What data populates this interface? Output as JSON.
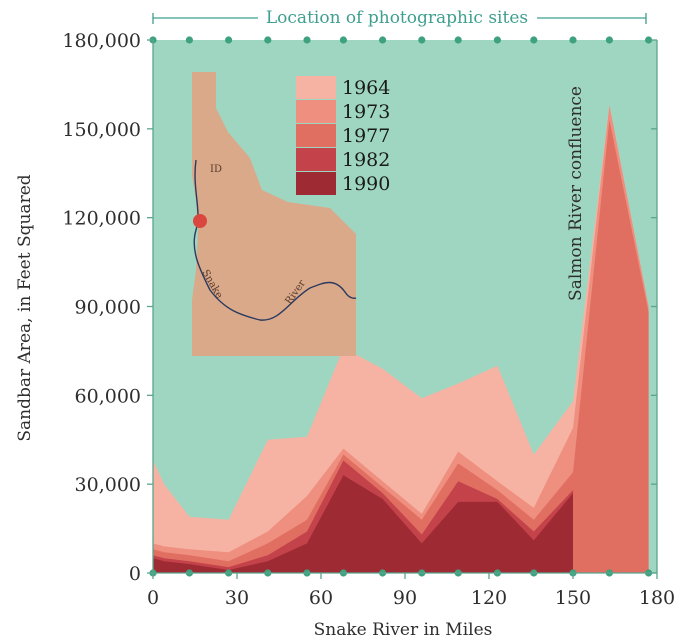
{
  "chart_data": {
    "type": "area",
    "title": "",
    "xlabel": "Snake River in Miles",
    "ylabel": "Sandbar Area, in Feet Squared",
    "xlim": [
      0,
      180
    ],
    "ylim": [
      0,
      180000
    ],
    "xticks": [
      0,
      30,
      60,
      90,
      120,
      150,
      180
    ],
    "yticks": [
      0,
      30000,
      60000,
      90000,
      120000,
      150000,
      180000
    ],
    "ytick_labels": [
      "0",
      "30,000",
      "60,000",
      "90,000",
      "120,000",
      "150,000",
      "180,000"
    ],
    "xtick_labels": [
      "0",
      "30",
      "60",
      "90",
      "120",
      "150",
      "180"
    ],
    "background_color": "#9fd6c2",
    "top_label": "Location of photographic sites",
    "site_miles": [
      0,
      13,
      27,
      41,
      55,
      68,
      82,
      96,
      109,
      123,
      136,
      150,
      163,
      177
    ],
    "annotation": "Salmon River confluence",
    "legend_position": "top-left",
    "series": [
      {
        "name": "1964",
        "color": "#f6b3a3",
        "x": [
          0,
          4,
          13,
          27,
          41,
          55,
          68,
          82,
          96,
          109,
          123,
          136,
          150,
          163,
          177
        ],
        "values": [
          38000,
          30000,
          19000,
          18000,
          45000,
          46000,
          76000,
          69000,
          59000,
          64000,
          70000,
          40000,
          58000,
          158000,
          90000
        ]
      },
      {
        "name": "1973",
        "color": "#ef8f7f",
        "x": [
          0,
          4,
          13,
          27,
          41,
          55,
          68,
          82,
          96,
          109,
          123,
          136,
          150,
          163,
          177
        ],
        "values": [
          10000,
          9000,
          8000,
          7000,
          14000,
          26000,
          42000,
          31000,
          20000,
          41000,
          31000,
          22000,
          49000,
          158000,
          90000
        ]
      },
      {
        "name": "1977",
        "color": "#e06f62",
        "x": [
          0,
          4,
          13,
          27,
          41,
          55,
          68,
          82,
          96,
          109,
          123,
          136,
          150,
          163,
          177
        ],
        "values": [
          8000,
          7000,
          6000,
          4000,
          10000,
          18000,
          40000,
          29000,
          18000,
          37000,
          28000,
          18000,
          34000,
          153000,
          88000
        ]
      },
      {
        "name": "1982",
        "color": "#c4424a",
        "x": [
          0,
          4,
          13,
          27,
          41,
          55,
          68,
          82,
          96,
          109,
          123,
          136,
          150
        ],
        "values": [
          6000,
          5000,
          4000,
          2000,
          6000,
          14000,
          38000,
          27000,
          13000,
          31000,
          25000,
          14000,
          28000
        ]
      },
      {
        "name": "1990",
        "color": "#9e2a33",
        "x": [
          0,
          4,
          13,
          27,
          41,
          55,
          68,
          82,
          96,
          109,
          123,
          136,
          150
        ],
        "values": [
          5000,
          4000,
          3000,
          1000,
          4000,
          10000,
          33000,
          25000,
          10000,
          24000,
          24000,
          11000,
          27000
        ]
      }
    ]
  },
  "map": {
    "state_label": "ID",
    "river_label_1": "Snake",
    "river_label_2": "River",
    "fill": "#d9a98a",
    "marker_color": "#d9473f"
  }
}
